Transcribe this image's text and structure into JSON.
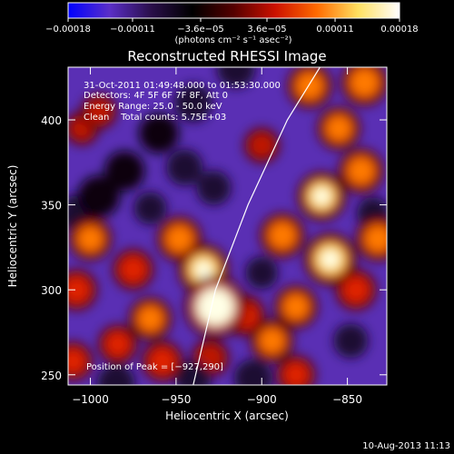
{
  "chart_data": {
    "type": "heatmap",
    "title": "Reconstructed RHESSI Image",
    "xlabel": "Heliocentric X (arcsec)",
    "ylabel": "Heliocentric Y (arcsec)",
    "xlim": [
      -1013,
      -827
    ],
    "ylim": [
      244,
      431
    ],
    "x_ticks": [
      -1000,
      -950,
      -900,
      -850
    ],
    "x_tick_labels": [
      "−1000",
      "−950",
      "−900",
      "−850"
    ],
    "y_ticks": [
      250,
      300,
      350,
      400
    ],
    "y_tick_labels": [
      "250",
      "300",
      "350",
      "400"
    ],
    "colorbar": {
      "ticks": [
        -0.00018,
        -0.00011,
        -3.6e-05,
        3.6e-05,
        0.00011,
        0.00018
      ],
      "tick_labels": [
        "−0.00018",
        "−0.00011",
        "−3.6e−05",
        "3.6e−05",
        "0.00011",
        "0.00018"
      ],
      "unit_label": "(photons cm⁻² s⁻¹ asec⁻²)",
      "colormap": [
        "#0000ff",
        "#5a2ec8",
        "#2a0f4a",
        "#000000",
        "#550000",
        "#cc1100",
        "#ff6a00",
        "#ffe060",
        "#ffffff"
      ]
    },
    "annotations": [
      "31-Oct-2011 01:49:48.000 to 01:53:30.000",
      "Detectors: 4F 5F 6F 7F 8F, Att 0",
      "Energy Range: 25.0 - 50.0 keV",
      "Clean    Total counts: 5.75E+03"
    ],
    "peak_label": "Position of Peak = [−927,290]",
    "peak": {
      "x": -927,
      "y": 290
    },
    "limb_curve": [
      {
        "x": -940,
        "y": 244
      },
      {
        "x": -927,
        "y": 300
      },
      {
        "x": -908,
        "y": 350
      },
      {
        "x": -885,
        "y": 400
      },
      {
        "x": -866,
        "y": 431
      }
    ],
    "blobs": [
      {
        "x": -927,
        "y": 290,
        "v": 0.00018
      },
      {
        "x": -934,
        "y": 312,
        "v": 0.00012
      },
      {
        "x": -948,
        "y": 330,
        "v": 9e-05
      },
      {
        "x": -965,
        "y": 283,
        "v": 8e-05
      },
      {
        "x": -975,
        "y": 312,
        "v": 7e-05
      },
      {
        "x": -984,
        "y": 268,
        "v": 6e-05
      },
      {
        "x": -1000,
        "y": 330,
        "v": 8e-05
      },
      {
        "x": -1008,
        "y": 300,
        "v": 7e-05
      },
      {
        "x": -1010,
        "y": 258,
        "v": 6e-05
      },
      {
        "x": -958,
        "y": 258,
        "v": 7e-05
      },
      {
        "x": -930,
        "y": 260,
        "v": 5e-05
      },
      {
        "x": -910,
        "y": 285,
        "v": 7e-05
      },
      {
        "x": -894,
        "y": 270,
        "v": 8e-05
      },
      {
        "x": -880,
        "y": 250,
        "v": 6e-05
      },
      {
        "x": -880,
        "y": 290,
        "v": 8e-05
      },
      {
        "x": -860,
        "y": 318,
        "v": 0.00013
      },
      {
        "x": -845,
        "y": 300,
        "v": 7e-05
      },
      {
        "x": -832,
        "y": 330,
        "v": 9e-05
      },
      {
        "x": -888,
        "y": 332,
        "v": 9e-05
      },
      {
        "x": -865,
        "y": 355,
        "v": 0.00011
      },
      {
        "x": -842,
        "y": 370,
        "v": 9e-05
      },
      {
        "x": -855,
        "y": 395,
        "v": 8e-05
      },
      {
        "x": -840,
        "y": 422,
        "v": 0.0001
      },
      {
        "x": -872,
        "y": 420,
        "v": 9e-05
      },
      {
        "x": -900,
        "y": 385,
        "v": 4e-05
      },
      {
        "x": -995,
        "y": 405,
        "v": 4e-05
      },
      {
        "x": -1005,
        "y": 395,
        "v": 3e-05
      },
      {
        "x": -980,
        "y": 370,
        "v": -8e-05
      },
      {
        "x": -995,
        "y": 355,
        "v": -9e-05
      },
      {
        "x": -960,
        "y": 392,
        "v": -8e-05
      },
      {
        "x": -940,
        "y": 410,
        "v": -7e-05
      },
      {
        "x": -945,
        "y": 372,
        "v": -6e-05
      },
      {
        "x": -1007,
        "y": 345,
        "v": -7e-05
      },
      {
        "x": -985,
        "y": 245,
        "v": -7e-05
      },
      {
        "x": -940,
        "y": 248,
        "v": -6e-05
      },
      {
        "x": -905,
        "y": 248,
        "v": -7e-05
      },
      {
        "x": -915,
        "y": 430,
        "v": -7e-05
      },
      {
        "x": -928,
        "y": 360,
        "v": -5e-05
      },
      {
        "x": -965,
        "y": 348,
        "v": -4e-05
      },
      {
        "x": -900,
        "y": 310,
        "v": -4e-05
      },
      {
        "x": -848,
        "y": 270,
        "v": -5e-05
      },
      {
        "x": -835,
        "y": 345,
        "v": -4e-05
      }
    ]
  },
  "footer_date": "10-Aug-2013 11:13"
}
